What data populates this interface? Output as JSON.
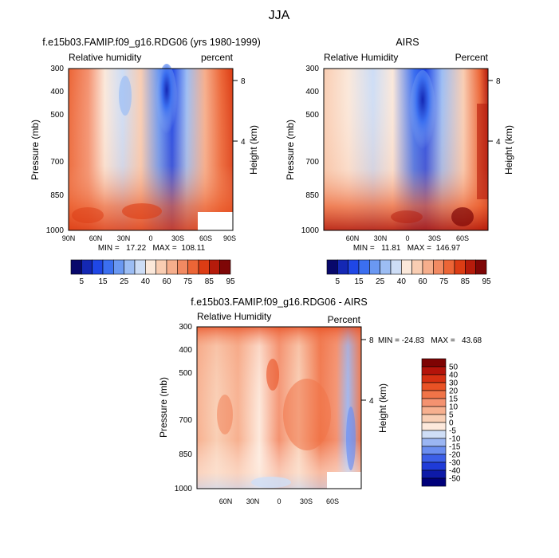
{
  "figure": {
    "title": "JJA"
  },
  "palettes": {
    "humidity": [
      "#08086b",
      "#1428b4",
      "#1f47e6",
      "#3b6ff0",
      "#6a98f2",
      "#9cbdf4",
      "#cdddf6",
      "#fbe8da",
      "#f9cdb2",
      "#f6ae8c",
      "#f28a62",
      "#ec6536",
      "#dc3c14",
      "#b51b0b",
      "#7e0606"
    ],
    "difference": [
      "#00007a",
      "#0d1aa8",
      "#1f3bd8",
      "#3c5fe8",
      "#6b8ef0",
      "#9bb6f3",
      "#cfdef6",
      "#fde9dc",
      "#f9cfb5",
      "#f7b08f",
      "#f49270",
      "#f07448",
      "#e95225",
      "#d63012",
      "#b4130a",
      "#7e0303"
    ]
  },
  "chart_data": [
    {
      "type": "heatmap",
      "id": "model",
      "title": "f.e15b03.FAMIP.f09_g16.RDG06 (yrs 1980-1999)",
      "left_label": "Relative humidity",
      "right_label": "percent",
      "ylabel": "Pressure (mb)",
      "y2label": "Height (km)",
      "yticks": [
        "300",
        "400",
        "500",
        "700",
        "850",
        "1000"
      ],
      "y2ticks": [
        "8",
        "4"
      ],
      "xticks": [
        "90N",
        "60N",
        "30N",
        "0",
        "30S",
        "60S",
        "90S"
      ],
      "stats": "MIN =   17.22   MAX =  108.11",
      "colorbar_labels": [
        "5",
        "15",
        "25",
        "40",
        "60",
        "75",
        "85",
        "95"
      ]
    },
    {
      "type": "heatmap",
      "id": "airs",
      "title": "AIRS",
      "left_label": "Relative Humidity",
      "right_label": "Percent",
      "ylabel": "Pressure (mb)",
      "y2label": "Height (km)",
      "yticks": [
        "300",
        "400",
        "500",
        "700",
        "850",
        "1000"
      ],
      "y2ticks": [
        "8",
        "4"
      ],
      "xticks": [
        "60N",
        "30N",
        "0",
        "30S",
        "60S"
      ],
      "stats": "MIN =   11.81   MAX =  146.97",
      "colorbar_labels": [
        "5",
        "15",
        "25",
        "40",
        "60",
        "75",
        "85",
        "95"
      ]
    },
    {
      "type": "heatmap",
      "id": "diff",
      "title": "f.e15b03.FAMIP.f09_g16.RDG06 - AIRS",
      "left_label": "Relative Humidity",
      "right_label": "Percent",
      "ylabel": "Pressure (mb)",
      "y2label": "Height (km)",
      "yticks": [
        "300",
        "400",
        "500",
        "700",
        "850",
        "1000"
      ],
      "y2ticks": [
        "8",
        "4"
      ],
      "xticks": [
        "60N",
        "30N",
        "0",
        "30S",
        "60S"
      ],
      "stats": "MIN = -24.83   MAX =   43.68",
      "colorbar_labels": [
        "50",
        "40",
        "30",
        "20",
        "15",
        "10",
        "5",
        "0",
        "-5",
        "-10",
        "-15",
        "-20",
        "-30",
        "-40",
        "-50"
      ]
    }
  ]
}
